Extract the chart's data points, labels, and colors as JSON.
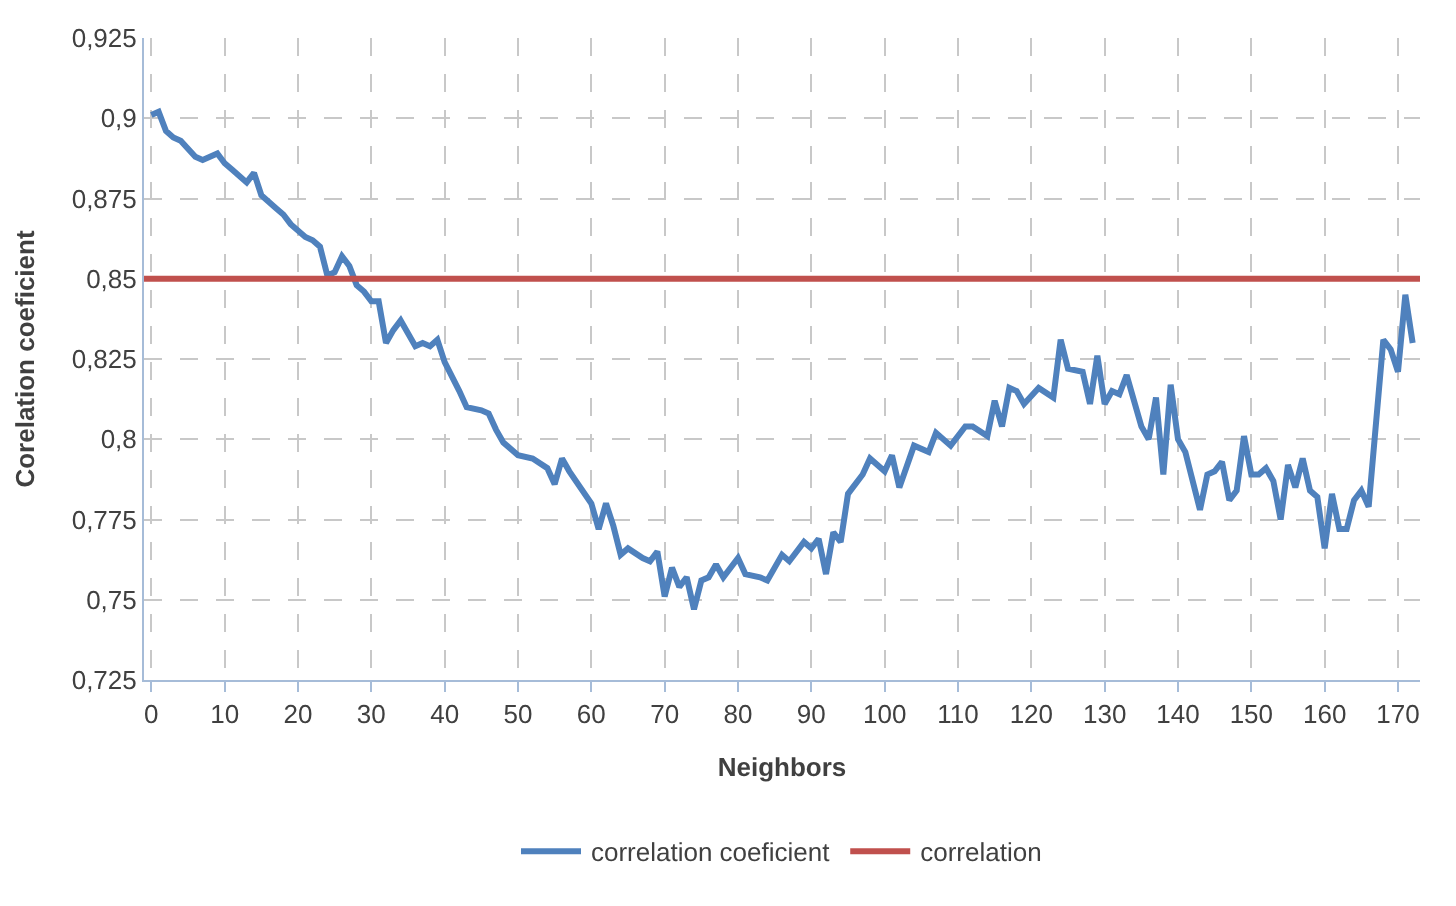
{
  "chart_data": {
    "type": "line",
    "xlabel": "Neighbors",
    "ylabel": "Corelation coeficient",
    "x": [
      0,
      1,
      2,
      3,
      4,
      6,
      7,
      9,
      10,
      11,
      13,
      14,
      15,
      17,
      18,
      19,
      21,
      22,
      23,
      24,
      25,
      26,
      27,
      28,
      29,
      30,
      31,
      32,
      33,
      34,
      36,
      37,
      38,
      39,
      40,
      42,
      43,
      45,
      46,
      47,
      48,
      50,
      52,
      54,
      55,
      56,
      57,
      60,
      61,
      62,
      63,
      64,
      65,
      67,
      68,
      69,
      70,
      71,
      72,
      73,
      74,
      75,
      76,
      77,
      78,
      80,
      81,
      83,
      84,
      86,
      87,
      89,
      90,
      91,
      92,
      93,
      94,
      95,
      97,
      98,
      100,
      101,
      102,
      104,
      106,
      107,
      109,
      111,
      112,
      114,
      115,
      116,
      117,
      118,
      119,
      121,
      123,
      124,
      125,
      127,
      128,
      129,
      130,
      131,
      132,
      133,
      135,
      136,
      137,
      138,
      139,
      140,
      141,
      143,
      144,
      145,
      146,
      147,
      148,
      149,
      150,
      151,
      152,
      153,
      154,
      155,
      156,
      157,
      158,
      159,
      160,
      161,
      162,
      163,
      164,
      165,
      166,
      168,
      169,
      170,
      171,
      172
    ],
    "series": [
      {
        "name": "correlation coeficient",
        "color": "#4f81bd",
        "values": [
          0.901,
          0.902,
          0.896,
          0.894,
          0.893,
          0.888,
          0.887,
          0.889,
          0.886,
          0.884,
          0.88,
          0.883,
          0.876,
          0.872,
          0.87,
          0.867,
          0.863,
          0.862,
          0.86,
          0.851,
          0.852,
          0.857,
          0.854,
          0.848,
          0.846,
          0.843,
          0.843,
          0.83,
          0.834,
          0.837,
          0.829,
          0.83,
          0.829,
          0.831,
          0.824,
          0.815,
          0.81,
          0.809,
          0.808,
          0.803,
          0.799,
          0.795,
          0.794,
          0.791,
          0.786,
          0.794,
          0.79,
          0.78,
          0.772,
          0.78,
          0.773,
          0.764,
          0.766,
          0.763,
          0.762,
          0.765,
          0.751,
          0.76,
          0.754,
          0.757,
          0.747,
          0.756,
          0.757,
          0.761,
          0.757,
          0.763,
          0.758,
          0.757,
          0.756,
          0.764,
          0.762,
          0.768,
          0.766,
          0.769,
          0.758,
          0.771,
          0.768,
          0.783,
          0.789,
          0.794,
          0.79,
          0.795,
          0.785,
          0.798,
          0.796,
          0.802,
          0.798,
          0.804,
          0.804,
          0.801,
          0.812,
          0.804,
          0.816,
          0.815,
          0.811,
          0.816,
          0.813,
          0.831,
          0.822,
          0.821,
          0.811,
          0.826,
          0.811,
          0.815,
          0.814,
          0.82,
          0.804,
          0.8,
          0.813,
          0.789,
          0.817,
          0.8,
          0.796,
          0.778,
          0.789,
          0.79,
          0.793,
          0.781,
          0.784,
          0.801,
          0.789,
          0.789,
          0.791,
          0.787,
          0.775,
          0.792,
          0.785,
          0.794,
          0.784,
          0.782,
          0.766,
          0.783,
          0.772,
          0.772,
          0.781,
          0.784,
          0.779,
          0.831,
          0.828,
          0.821,
          0.845,
          0.83
        ]
      }
    ],
    "ref_lines": [
      {
        "axis": "y",
        "value": 0.85,
        "label": "correlation",
        "color": "#c0504d"
      }
    ],
    "xlim": [
      -1,
      173
    ],
    "xticks": [
      0,
      10,
      20,
      30,
      40,
      50,
      60,
      70,
      80,
      90,
      100,
      110,
      120,
      130,
      140,
      150,
      160,
      170
    ],
    "ylim": [
      0.725,
      0.925
    ],
    "yticks": [
      {
        "value": 0.725,
        "label": "0,725"
      },
      {
        "value": 0.75,
        "label": "0,75"
      },
      {
        "value": 0.775,
        "label": "0,775"
      },
      {
        "value": 0.8,
        "label": "0,8"
      },
      {
        "value": 0.825,
        "label": "0,825"
      },
      {
        "value": 0.85,
        "label": "0,85"
      },
      {
        "value": 0.875,
        "label": "0,875"
      },
      {
        "value": 0.9,
        "label": "0,9"
      },
      {
        "value": 0.925,
        "label": "0,925"
      }
    ],
    "grid": true,
    "legend": "bottom",
    "marker": "none",
    "line_style": "solid"
  }
}
